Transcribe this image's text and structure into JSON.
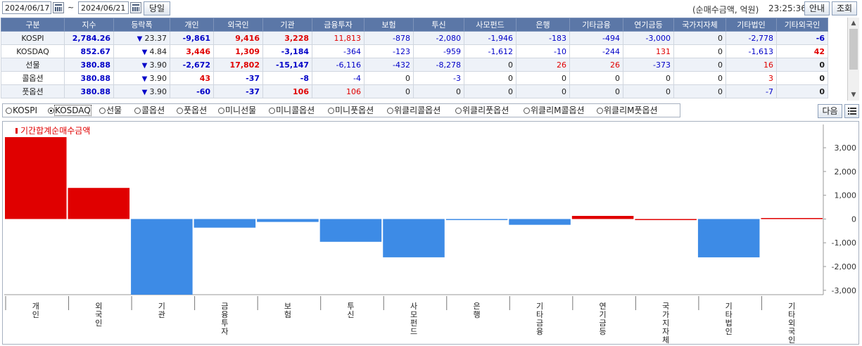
{
  "toolbar": {
    "start_date": "2024/06/17",
    "separator": "~",
    "end_date": "2024/06/21",
    "today_button": "당일",
    "unit_note": "(순매수금액, 억원)",
    "clock": "23:25:36",
    "guide_button": "안내",
    "search_button": "조회"
  },
  "grid": {
    "headers": [
      "구분",
      "지수",
      "등락폭",
      "개인",
      "외국인",
      "기관",
      "금융투자",
      "보험",
      "투신",
      "사모펀드",
      "은행",
      "기타금융",
      "연기금등",
      "국가지자체",
      "기타법인",
      "기타외국인"
    ],
    "rows": [
      {
        "name": "KOSPI",
        "index": "2,784.26",
        "arrow": "▼",
        "change": "23.37",
        "cells": [
          "-9,861",
          "9,416",
          "3,228",
          "11,813",
          "-878",
          "-2,080",
          "-1,946",
          "-183",
          "-494",
          "-3,000",
          "0",
          "-2,778",
          "-6"
        ]
      },
      {
        "name": "KOSDAQ",
        "index": "852.67",
        "arrow": "▼",
        "change": "4.84",
        "cells": [
          "3,446",
          "1,309",
          "-3,184",
          "-364",
          "-123",
          "-959",
          "-1,612",
          "-10",
          "-244",
          "131",
          "0",
          "-1,613",
          "42"
        ]
      },
      {
        "name": "선물",
        "index": "380.88",
        "arrow": "▼",
        "change": "3.90",
        "cells": [
          "-2,672",
          "17,802",
          "-15,147",
          "-6,116",
          "-432",
          "-8,278",
          "0",
          "26",
          "26",
          "-373",
          "0",
          "16",
          "0"
        ]
      },
      {
        "name": "콜옵션",
        "index": "380.88",
        "arrow": "▼",
        "change": "3.90",
        "cells": [
          "43",
          "-37",
          "-8",
          "-4",
          "0",
          "-3",
          "0",
          "0",
          "0",
          "0",
          "0",
          "3",
          "0"
        ]
      },
      {
        "name": "풋옵션",
        "index": "380.88",
        "arrow": "▼",
        "change": "3.90",
        "cells": [
          "-60",
          "-37",
          "106",
          "106",
          "0",
          "0",
          "0",
          "0",
          "0",
          "0",
          "0",
          "-7",
          "0"
        ]
      }
    ]
  },
  "markets": {
    "options": [
      "KOSPI",
      "KOSDAQ",
      "선물",
      "콜옵션",
      "풋옵션",
      "미니선물",
      "미니콜옵션",
      "미니풋옵션",
      "위클리콜옵션",
      "위클리풋옵션",
      "위클리M콜옵션",
      "위클리M풋옵션"
    ],
    "selected": "KOSDAQ",
    "next_button": "다음"
  },
  "colors": {
    "positive": "#e00000",
    "negative": "#3d8be6",
    "header_bg": "#5b77a7"
  },
  "chart_data": {
    "type": "bar",
    "title": "기간합계순매수금액",
    "categories": [
      "개인",
      "외국인",
      "기관",
      "금융투자",
      "보험",
      "투신",
      "사모펀드",
      "은행",
      "기타금융",
      "연기금등",
      "국가지자체",
      "기타법인",
      "기타외국인"
    ],
    "values": [
      3446,
      1309,
      -3184,
      -364,
      -123,
      -959,
      -1612,
      -10,
      -244,
      131,
      0,
      -1613,
      42
    ],
    "yticks": [
      3000,
      2000,
      1000,
      0,
      -1000,
      -2000,
      -3000
    ],
    "ytick_labels": [
      "3,000",
      "2,000",
      "1,000",
      "0",
      "-1,000",
      "-2,000",
      "-3,000"
    ],
    "ylim": [
      -3184,
      3446
    ],
    "grid": false,
    "legend_position": "top-left"
  }
}
